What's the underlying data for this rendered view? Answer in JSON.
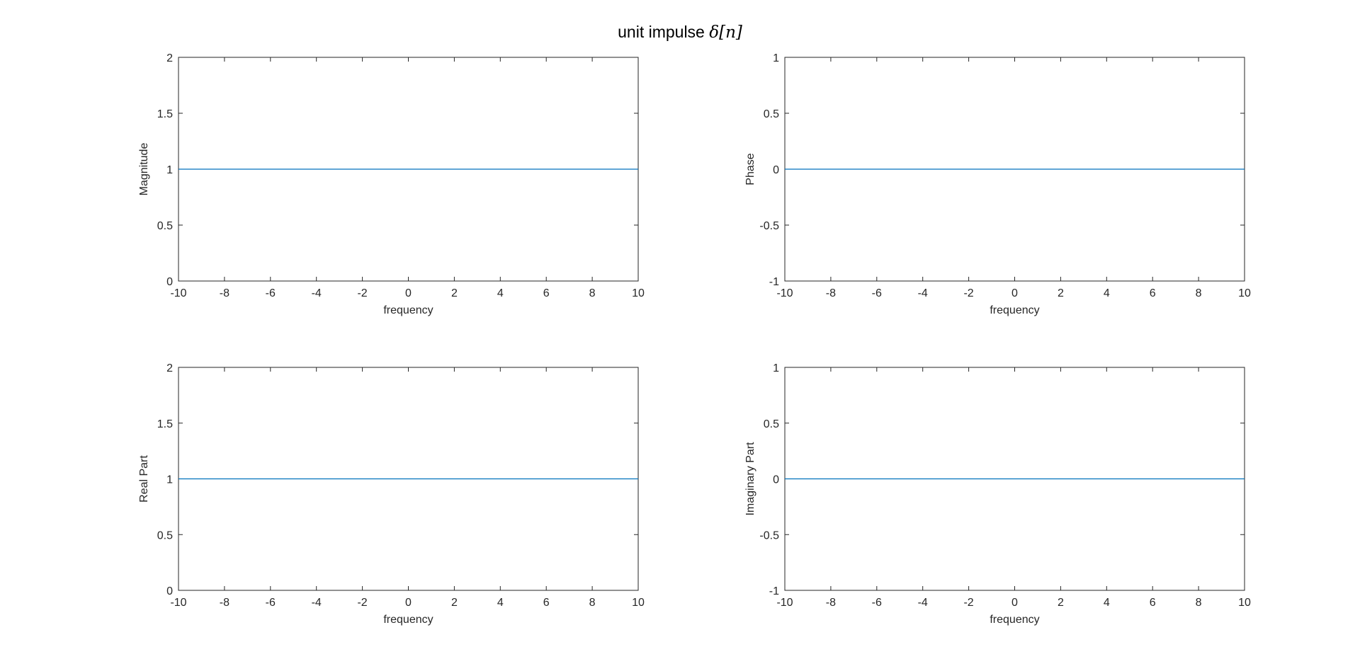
{
  "title": {
    "prefix": "unit impulse ",
    "math": "δ[n]"
  },
  "colors": {
    "axis": "#262626",
    "series": "#0072BD",
    "background": "#ffffff"
  },
  "chart_data": [
    {
      "type": "line",
      "ylabel": "Magnitude",
      "xlabel": "frequency",
      "xlim": [
        -10,
        10
      ],
      "ylim": [
        0,
        2
      ],
      "xticks": [
        -10,
        -8,
        -6,
        -4,
        -2,
        0,
        2,
        4,
        6,
        8,
        10
      ],
      "yticks": [
        0,
        0.5,
        1,
        1.5,
        2
      ],
      "grid": false,
      "x": [
        -10,
        10
      ],
      "y": [
        1,
        1
      ]
    },
    {
      "type": "line",
      "ylabel": "Phase",
      "xlabel": "frequency",
      "xlim": [
        -10,
        10
      ],
      "ylim": [
        -1,
        1
      ],
      "xticks": [
        -10,
        -8,
        -6,
        -4,
        -2,
        0,
        2,
        4,
        6,
        8,
        10
      ],
      "yticks": [
        -1,
        -0.5,
        0,
        0.5,
        1
      ],
      "grid": false,
      "x": [
        -10,
        10
      ],
      "y": [
        0,
        0
      ]
    },
    {
      "type": "line",
      "ylabel": "Real Part",
      "xlabel": "frequency",
      "xlim": [
        -10,
        10
      ],
      "ylim": [
        0,
        2
      ],
      "xticks": [
        -10,
        -8,
        -6,
        -4,
        -2,
        0,
        2,
        4,
        6,
        8,
        10
      ],
      "yticks": [
        0,
        0.5,
        1,
        1.5,
        2
      ],
      "grid": false,
      "x": [
        -10,
        10
      ],
      "y": [
        1,
        1
      ]
    },
    {
      "type": "line",
      "ylabel": "Imaginary Part",
      "xlabel": "frequency",
      "xlim": [
        -10,
        10
      ],
      "ylim": [
        -1,
        1
      ],
      "xticks": [
        -10,
        -8,
        -6,
        -4,
        -2,
        0,
        2,
        4,
        6,
        8,
        10
      ],
      "yticks": [
        -1,
        -0.5,
        0,
        0.5,
        1
      ],
      "grid": false,
      "x": [
        -10,
        10
      ],
      "y": [
        0,
        0
      ]
    }
  ]
}
